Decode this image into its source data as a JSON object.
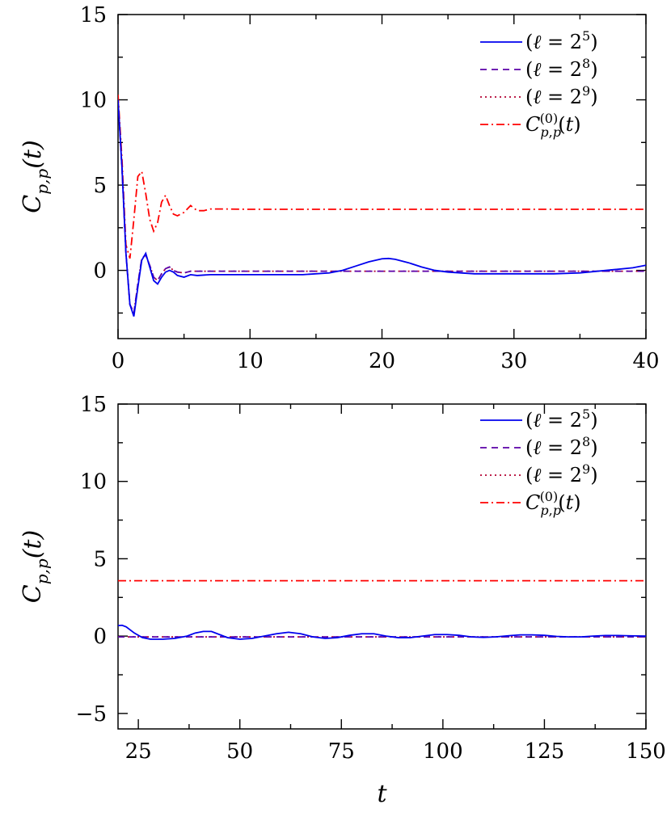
{
  "chart_data": [
    {
      "type": "line",
      "title": "",
      "xlabel": "",
      "ylabel": "C_{p,p}(t)",
      "xlim": [
        0,
        40
      ],
      "ylim": [
        -4,
        15
      ],
      "xticks": [
        0,
        10,
        20,
        30,
        40
      ],
      "yticks": [
        0,
        5,
        10,
        15
      ],
      "legend_position": "top-right",
      "series": [
        {
          "name": "(ℓ = 2^5)",
          "color": "#0000ee",
          "dash": "solid",
          "x": [
            0,
            0.3,
            0.6,
            0.9,
            1.2,
            1.5,
            1.8,
            2.1,
            2.4,
            2.7,
            3.0,
            3.3,
            3.6,
            3.9,
            4.2,
            4.5,
            5,
            5.5,
            6,
            7,
            8,
            10,
            14,
            16,
            17,
            18,
            19,
            20,
            20.5,
            21,
            22,
            23,
            24,
            25,
            27,
            30,
            33,
            35,
            37,
            39,
            40
          ],
          "y": [
            10.0,
            6.0,
            1.0,
            -2.0,
            -2.7,
            -1.0,
            0.6,
            1.0,
            0.2,
            -0.6,
            -0.8,
            -0.4,
            -0.1,
            0.0,
            -0.1,
            -0.3,
            -0.4,
            -0.25,
            -0.3,
            -0.25,
            -0.25,
            -0.25,
            -0.25,
            -0.15,
            0.0,
            0.25,
            0.5,
            0.68,
            0.7,
            0.65,
            0.45,
            0.2,
            0.0,
            -0.1,
            -0.2,
            -0.2,
            -0.2,
            -0.15,
            0.0,
            0.15,
            0.3
          ]
        },
        {
          "name": "(ℓ = 2^8)",
          "color": "#5b00a8",
          "dash": "8,6",
          "x": [
            0,
            0.3,
            0.6,
            0.9,
            1.2,
            1.5,
            1.8,
            2.1,
            2.4,
            2.7,
            3.0,
            3.3,
            3.6,
            3.9,
            4.2,
            4.5,
            5,
            5.5,
            6,
            7,
            8,
            10,
            20,
            30,
            40
          ],
          "y": [
            10.0,
            6.0,
            1.0,
            -2.0,
            -2.5,
            -0.8,
            0.7,
            0.9,
            0.3,
            -0.4,
            -0.6,
            -0.2,
            0.1,
            0.2,
            0.0,
            -0.1,
            -0.15,
            -0.05,
            -0.05,
            -0.05,
            -0.05,
            -0.05,
            -0.05,
            -0.05,
            -0.05
          ]
        },
        {
          "name": "(ℓ = 2^9)",
          "color": "#b30032",
          "dash": "2,4",
          "x": [
            0,
            0.3,
            0.6,
            0.9,
            1.2,
            1.5,
            1.8,
            2.1,
            2.4,
            2.7,
            3.0,
            3.3,
            3.6,
            3.9,
            4.2,
            4.5,
            5,
            5.5,
            6,
            7,
            8,
            10,
            20,
            30,
            40
          ],
          "y": [
            10.0,
            6.0,
            1.0,
            -2.0,
            -2.5,
            -0.8,
            0.7,
            0.9,
            0.3,
            -0.4,
            -0.6,
            -0.2,
            0.1,
            0.2,
            0.0,
            -0.1,
            -0.15,
            -0.05,
            -0.05,
            -0.05,
            -0.05,
            -0.05,
            -0.05,
            -0.05,
            -0.05
          ]
        },
        {
          "name": "C_{p,p}^{(0)}(t)",
          "color": "#ff0000",
          "dash": "10,4,2,4",
          "x": [
            0,
            0.3,
            0.6,
            0.9,
            1.2,
            1.5,
            1.8,
            2.1,
            2.4,
            2.7,
            3.0,
            3.3,
            3.6,
            3.9,
            4.2,
            4.5,
            5.0,
            5.5,
            6.0,
            6.5,
            7.0,
            7.5,
            8,
            10,
            20,
            30,
            40
          ],
          "y": [
            10.3,
            6.5,
            1.5,
            0.7,
            3.0,
            5.5,
            5.8,
            4.5,
            3.0,
            2.3,
            2.8,
            4.0,
            4.4,
            3.8,
            3.3,
            3.2,
            3.4,
            3.8,
            3.5,
            3.5,
            3.6,
            3.6,
            3.6,
            3.58,
            3.58,
            3.58,
            3.58
          ]
        }
      ]
    },
    {
      "type": "line",
      "title": "",
      "xlabel": "t",
      "ylabel": "C_{p,p}(t)",
      "xlim": [
        20,
        150
      ],
      "ylim": [
        -6,
        15
      ],
      "xticks": [
        25,
        50,
        75,
        100,
        125,
        150
      ],
      "yticks": [
        -5,
        0,
        5,
        10,
        15
      ],
      "legend_position": "top-right",
      "series": [
        {
          "name": "(ℓ = 2^5)",
          "color": "#0000ee",
          "dash": "solid",
          "x": [
            20,
            21,
            22,
            24,
            26,
            28,
            31,
            34,
            37,
            39,
            41,
            43,
            45,
            47,
            50,
            53,
            56,
            59,
            62,
            65,
            68,
            71,
            74,
            77,
            80,
            83,
            86,
            89,
            92,
            95,
            98,
            101,
            104,
            107,
            110,
            113,
            116,
            119,
            122,
            125,
            128,
            131,
            134,
            137,
            140,
            143,
            146,
            150
          ],
          "y": [
            0.68,
            0.7,
            0.6,
            0.2,
            -0.1,
            -0.2,
            -0.2,
            -0.15,
            0.0,
            0.2,
            0.3,
            0.3,
            0.1,
            -0.1,
            -0.2,
            -0.15,
            0.0,
            0.15,
            0.25,
            0.15,
            -0.05,
            -0.15,
            -0.1,
            0.05,
            0.15,
            0.15,
            0.0,
            -0.1,
            -0.1,
            0.0,
            0.1,
            0.1,
            0.05,
            -0.05,
            -0.08,
            -0.05,
            0.02,
            0.08,
            0.08,
            0.05,
            -0.02,
            -0.05,
            -0.05,
            0.0,
            0.04,
            0.04,
            0.02,
            0.0
          ]
        },
        {
          "name": "(ℓ = 2^8)",
          "color": "#5b00a8",
          "dash": "8,6",
          "x": [
            20,
            150
          ],
          "y": [
            -0.05,
            -0.05
          ]
        },
        {
          "name": "(ℓ = 2^9)",
          "color": "#b30032",
          "dash": "2,4",
          "x": [
            20,
            150
          ],
          "y": [
            -0.05,
            -0.05
          ]
        },
        {
          "name": "C_{p,p}^{(0)}(t)",
          "color": "#ff0000",
          "dash": "10,4,2,4",
          "x": [
            20,
            150
          ],
          "y": [
            3.58,
            3.58
          ]
        }
      ]
    }
  ]
}
